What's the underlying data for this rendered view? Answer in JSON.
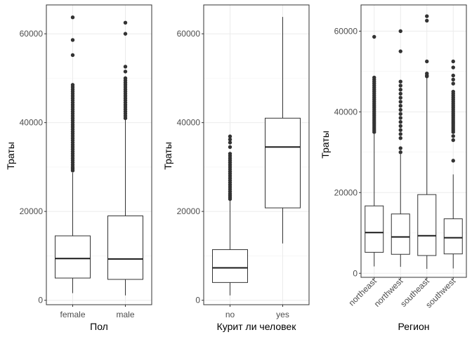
{
  "chart_data": [
    {
      "type": "boxplot",
      "xlabel": "Пол",
      "ylabel": "Траты",
      "categories": [
        "female",
        "male"
      ],
      "ylim": [
        -1000,
        66500
      ],
      "yticks": [
        0,
        20000,
        40000,
        60000
      ],
      "grid": true,
      "boxes": [
        {
          "category": "female",
          "min": 1600,
          "q1": 5000,
          "median": 9400,
          "q3": 14500,
          "max": 28700,
          "outliers": [
            29200,
            29600,
            30000,
            30500,
            31000,
            31500,
            32000,
            32500,
            33000,
            33500,
            34000,
            34500,
            35000,
            35500,
            36000,
            36500,
            37000,
            37500,
            38000,
            38500,
            39000,
            39500,
            40000,
            40500,
            41000,
            41500,
            42000,
            42500,
            43000,
            43500,
            44000,
            44500,
            45000,
            45500,
            46000,
            46500,
            47000,
            47500,
            48000,
            48500,
            55200,
            58600,
            63700
          ]
        },
        {
          "category": "male",
          "min": 1100,
          "q1": 4700,
          "median": 9300,
          "q3": 19000,
          "max": 40900,
          "outliers": [
            41000,
            41500,
            42000,
            42500,
            43000,
            43500,
            44000,
            44500,
            45000,
            45500,
            46000,
            46500,
            47000,
            47500,
            48000,
            48500,
            49000,
            49500,
            50000,
            51500,
            52600,
            60000,
            62500
          ]
        }
      ]
    },
    {
      "type": "boxplot",
      "xlabel": "Курит ли человек",
      "ylabel": "Траты",
      "categories": [
        "no",
        "yes"
      ],
      "ylim": [
        -1000,
        66500
      ],
      "yticks": [
        0,
        20000,
        40000,
        60000
      ],
      "grid": true,
      "boxes": [
        {
          "category": "no",
          "min": 1100,
          "q1": 4000,
          "median": 7300,
          "q3": 11400,
          "max": 22400,
          "outliers": [
            22800,
            23200,
            23600,
            24000,
            24500,
            25000,
            25500,
            26000,
            26500,
            27000,
            27500,
            28000,
            28500,
            29000,
            29500,
            30000,
            30500,
            31000,
            31500,
            32000,
            32500,
            33000,
            34500,
            35500,
            36200,
            36900
          ]
        },
        {
          "category": "yes",
          "min": 12800,
          "q1": 20800,
          "median": 34500,
          "q3": 41000,
          "max": 63800,
          "outliers": []
        }
      ]
    },
    {
      "type": "boxplot",
      "xlabel": "Регион",
      "ylabel": "Траты",
      "categories": [
        "northeast",
        "northwest",
        "southeast",
        "southwest"
      ],
      "ylim": [
        -1000,
        66500
      ],
      "yticks": [
        0,
        20000,
        40000,
        60000
      ],
      "grid": true,
      "boxes": [
        {
          "category": "northeast",
          "min": 1700,
          "q1": 5200,
          "median": 10100,
          "q3": 16700,
          "max": 34500,
          "outliers": [
            35000,
            35500,
            36000,
            36500,
            37000,
            37500,
            38000,
            38500,
            39000,
            39500,
            40000,
            40500,
            41000,
            41500,
            42000,
            42500,
            43000,
            43500,
            44000,
            44500,
            45000,
            45500,
            46000,
            46500,
            47000,
            47500,
            48000,
            48500,
            58600
          ]
        },
        {
          "category": "northwest",
          "min": 1600,
          "q1": 4700,
          "median": 9000,
          "q3": 14700,
          "max": 29500,
          "outliers": [
            30000,
            31000,
            33500,
            34500,
            35500,
            36500,
            37500,
            38500,
            39500,
            40500,
            41500,
            42500,
            43500,
            44500,
            45500,
            46500,
            47500,
            55000,
            60000
          ]
        },
        {
          "category": "southeast",
          "min": 1100,
          "q1": 4400,
          "median": 9300,
          "q3": 19500,
          "max": 48500,
          "outliers": [
            48800,
            49000,
            49500,
            52500,
            62600,
            63700
          ]
        },
        {
          "category": "southwest",
          "min": 1200,
          "q1": 4800,
          "median": 8800,
          "q3": 13500,
          "max": 24500,
          "outliers": [
            27900,
            33000,
            34000,
            35000,
            35500,
            36000,
            36500,
            37000,
            37500,
            38000,
            38500,
            39000,
            39500,
            40000,
            40500,
            41000,
            41500,
            42000,
            42500,
            43000,
            43500,
            44000,
            44500,
            45000,
            47000,
            48000,
            49000,
            51000,
            52500
          ]
        }
      ]
    }
  ]
}
